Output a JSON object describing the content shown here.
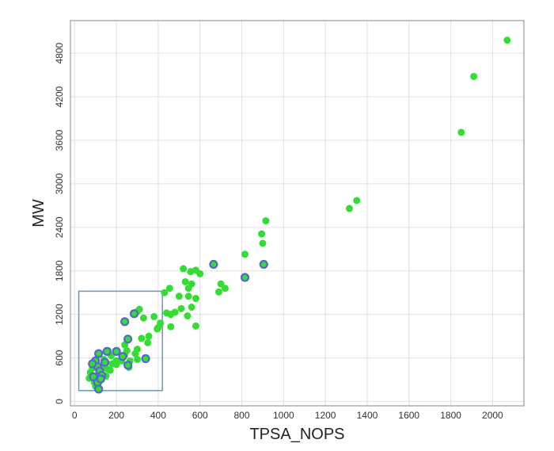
{
  "chart_data": {
    "type": "scatter",
    "xlabel": "TPSA_NOPS",
    "ylabel": "MW",
    "xlim": [
      -20,
      2150
    ],
    "ylim": [
      -60,
      5250
    ],
    "xticks": [
      0,
      200,
      400,
      600,
      800,
      1000,
      1200,
      1400,
      1600,
      1800,
      2000
    ],
    "yticks": [
      0,
      600,
      1200,
      1800,
      2400,
      3000,
      3600,
      4200,
      4800
    ],
    "grid": true,
    "selection_box": {
      "x": [
        20,
        420
      ],
      "y": [
        150,
        1520
      ]
    },
    "colors": {
      "point_fill": "#33dd33",
      "highlight_ring": "#5566cc",
      "box_stroke": "#6699bb",
      "grid": "#e0e0e0",
      "frame": "#888888"
    },
    "series": [
      {
        "points": [
          [
            2070,
            4980
          ],
          [
            1910,
            4480
          ],
          [
            1850,
            3710
          ],
          [
            1350,
            2770
          ],
          [
            1315,
            2660
          ],
          [
            915,
            2490
          ],
          [
            895,
            2310
          ],
          [
            900,
            2180
          ],
          [
            815,
            2030
          ],
          [
            690,
            1510
          ],
          [
            700,
            1620
          ],
          [
            720,
            1560
          ],
          [
            600,
            1760
          ],
          [
            580,
            1810
          ],
          [
            555,
            1790
          ],
          [
            520,
            1830
          ],
          [
            530,
            1650
          ],
          [
            560,
            1620
          ],
          [
            545,
            1560
          ],
          [
            580,
            1420
          ],
          [
            500,
            1450
          ],
          [
            545,
            1450
          ],
          [
            560,
            1300
          ],
          [
            510,
            1280
          ],
          [
            480,
            1230
          ],
          [
            460,
            1200
          ],
          [
            540,
            1180
          ],
          [
            580,
            1040
          ],
          [
            460,
            1030
          ],
          [
            440,
            1220
          ],
          [
            455,
            1560
          ],
          [
            430,
            1500
          ],
          [
            380,
            1170
          ],
          [
            410,
            1080
          ],
          [
            395,
            1000
          ],
          [
            355,
            900
          ],
          [
            350,
            810
          ],
          [
            320,
            870
          ],
          [
            300,
            720
          ],
          [
            290,
            660
          ],
          [
            250,
            700
          ],
          [
            240,
            640
          ],
          [
            225,
            560
          ],
          [
            200,
            560
          ],
          [
            180,
            520
          ],
          [
            170,
            430
          ],
          [
            175,
            630
          ],
          [
            160,
            700
          ],
          [
            150,
            350
          ],
          [
            140,
            580
          ],
          [
            130,
            480
          ],
          [
            120,
            400
          ],
          [
            110,
            300
          ],
          [
            100,
            210
          ],
          [
            95,
            260
          ],
          [
            85,
            460
          ],
          [
            75,
            400
          ],
          [
            70,
            320
          ],
          [
            105,
            530
          ],
          [
            155,
            450
          ],
          [
            200,
            510
          ],
          [
            300,
            1240
          ],
          [
            310,
            1270
          ],
          [
            330,
            1150
          ],
          [
            400,
            1020
          ],
          [
            300,
            580
          ],
          [
            265,
            560
          ],
          [
            240,
            780
          ],
          [
            260,
            470
          ]
        ]
      },
      {
        "highlighted": true,
        "points": [
          [
            665,
            1890
          ],
          [
            905,
            1890
          ],
          [
            815,
            1710
          ],
          [
            285,
            1210
          ],
          [
            240,
            1100
          ],
          [
            255,
            860
          ],
          [
            340,
            590
          ],
          [
            255,
            500
          ],
          [
            155,
            690
          ],
          [
            115,
            660
          ],
          [
            100,
            560
          ],
          [
            110,
            480
          ],
          [
            120,
            420
          ],
          [
            90,
            340
          ],
          [
            130,
            360
          ],
          [
            110,
            260
          ],
          [
            115,
            170
          ],
          [
            85,
            520
          ],
          [
            145,
            540
          ],
          [
            125,
            310
          ],
          [
            230,
            620
          ],
          [
            200,
            690
          ]
        ]
      }
    ]
  }
}
